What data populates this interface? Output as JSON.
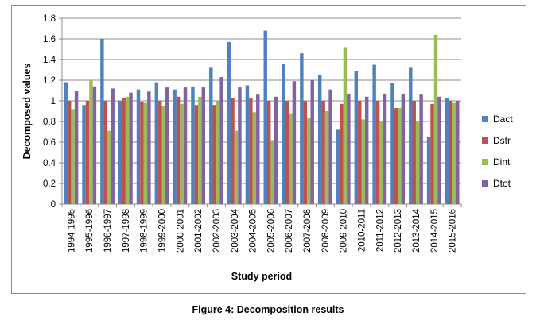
{
  "caption": "Figure 4: Decomposition results",
  "chart_data": {
    "type": "bar",
    "xlabel": "Study period",
    "ylabel": "Decomposed values",
    "ylim": [
      0,
      1.8
    ],
    "yticks": [
      "0",
      "0.2",
      "0.4",
      "0.6",
      "0.8",
      "1",
      "1.2",
      "1.4",
      "1.6",
      "1.8"
    ],
    "grid": true,
    "legend_position": "right",
    "categories": [
      "1994-1995",
      "1995-1996",
      "1996-1997",
      "1997-1998",
      "1998-1999",
      "1999-2000",
      "2000-2001",
      "2001-2002",
      "2002-2003",
      "2003-2004",
      "2004-2005",
      "2005-2006",
      "2006-2007",
      "2007-2008",
      "2008-2009",
      "2009-2010",
      "2010-2011",
      "2011-2012",
      "2012-2013",
      "2013-2014",
      "2014-2015",
      "2015-2016"
    ],
    "series": [
      {
        "name": "Dact",
        "color": "#4f81bd",
        "values": [
          1.18,
          0.96,
          1.6,
          1.0,
          1.11,
          1.18,
          1.11,
          1.14,
          1.32,
          1.57,
          1.15,
          1.68,
          1.36,
          1.46,
          1.25,
          0.72,
          1.29,
          1.35,
          1.17,
          1.32,
          0.65,
          1.03
        ]
      },
      {
        "name": "Dstr",
        "color": "#c0504d",
        "values": [
          1.0,
          1.0,
          1.0,
          1.03,
          0.99,
          1.0,
          1.04,
          0.96,
          0.96,
          1.03,
          1.03,
          1.0,
          1.0,
          1.0,
          1.0,
          0.97,
          1.0,
          1.0,
          0.93,
          1.0,
          0.97,
          1.0
        ]
      },
      {
        "name": "Dint",
        "color": "#9bbb59",
        "values": [
          0.92,
          1.2,
          0.71,
          1.04,
          0.98,
          0.95,
          0.97,
          1.04,
          1.0,
          0.71,
          0.89,
          0.62,
          0.88,
          0.83,
          0.9,
          1.52,
          0.82,
          0.8,
          0.93,
          0.8,
          1.64,
          0.98
        ]
      },
      {
        "name": "Dtot",
        "color": "#8064a2",
        "values": [
          1.1,
          1.14,
          1.12,
          1.08,
          1.09,
          1.13,
          1.13,
          1.13,
          1.23,
          1.13,
          1.06,
          1.04,
          1.19,
          1.2,
          1.11,
          1.07,
          1.04,
          1.07,
          1.07,
          1.06,
          1.04,
          1.0
        ]
      }
    ]
  }
}
